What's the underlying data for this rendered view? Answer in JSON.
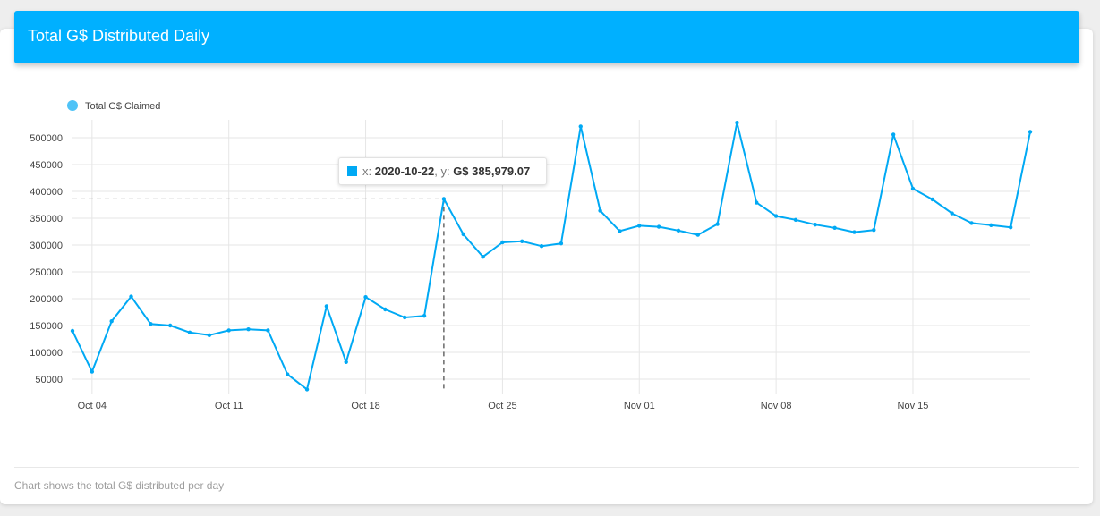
{
  "header": {
    "title": "Total G$ Distributed Daily"
  },
  "footer": {
    "note": "Chart shows the total G$ distributed per day"
  },
  "tooltip": {
    "x_label": "x: ",
    "x_value": "2020-10-22",
    "y_label": ", y: ",
    "y_value": "G$ 385,979.07"
  },
  "colors": {
    "accent": "#00b0ff",
    "series": "#00a9f4"
  },
  "chart_data": {
    "type": "line",
    "title": "",
    "xlabel": "",
    "ylabel": "",
    "legend": {
      "position": "top-left",
      "entries": [
        "Total G$ Claimed"
      ]
    },
    "grid": true,
    "ylim": [
      30000,
      530000
    ],
    "y_ticks": [
      50000,
      100000,
      150000,
      200000,
      250000,
      300000,
      350000,
      400000,
      450000,
      500000
    ],
    "x_ticks": [
      {
        "date": "2020-10-04",
        "label": "Oct 04"
      },
      {
        "date": "2020-10-11",
        "label": "Oct 11"
      },
      {
        "date": "2020-10-18",
        "label": "Oct 18"
      },
      {
        "date": "2020-10-25",
        "label": "Oct 25"
      },
      {
        "date": "2020-11-01",
        "label": "Nov 01"
      },
      {
        "date": "2020-11-08",
        "label": "Nov 08"
      },
      {
        "date": "2020-11-15",
        "label": "Nov 15"
      }
    ],
    "highlight": {
      "x": "2020-10-22",
      "y": 385979.07
    },
    "series": [
      {
        "name": "Total G$ Claimed",
        "x": [
          "2020-10-03",
          "2020-10-04",
          "2020-10-05",
          "2020-10-06",
          "2020-10-07",
          "2020-10-08",
          "2020-10-09",
          "2020-10-10",
          "2020-10-11",
          "2020-10-12",
          "2020-10-13",
          "2020-10-14",
          "2020-10-15",
          "2020-10-16",
          "2020-10-17",
          "2020-10-18",
          "2020-10-19",
          "2020-10-20",
          "2020-10-21",
          "2020-10-22",
          "2020-10-23",
          "2020-10-24",
          "2020-10-25",
          "2020-10-26",
          "2020-10-27",
          "2020-10-28",
          "2020-10-29",
          "2020-10-30",
          "2020-10-31",
          "2020-11-01",
          "2020-11-02",
          "2020-11-03",
          "2020-11-04",
          "2020-11-05",
          "2020-11-06",
          "2020-11-07",
          "2020-11-08",
          "2020-11-09",
          "2020-11-10",
          "2020-11-11",
          "2020-11-12",
          "2020-11-13",
          "2020-11-14",
          "2020-11-15",
          "2020-11-16",
          "2020-11-17",
          "2020-11-18",
          "2020-11-19",
          "2020-11-20",
          "2020-11-21"
        ],
        "values": [
          140000,
          64000,
          158000,
          204000,
          153000,
          150000,
          137000,
          132000,
          141000,
          143000,
          141000,
          59000,
          31000,
          186000,
          82000,
          203000,
          180000,
          165000,
          168000,
          385979.07,
          320000,
          278000,
          305000,
          307000,
          298000,
          303000,
          521000,
          364000,
          326000,
          336000,
          334000,
          327000,
          319000,
          339000,
          528000,
          379000,
          354000,
          347000,
          338000,
          332000,
          324000,
          328000,
          506000,
          405000,
          385000,
          359000,
          341000,
          337000,
          333000,
          511000
        ]
      }
    ]
  }
}
